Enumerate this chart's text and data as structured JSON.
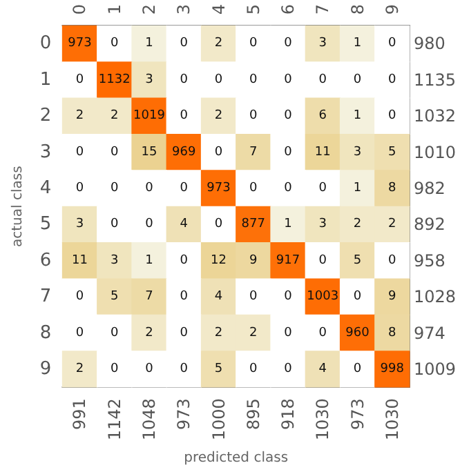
{
  "chart_data": {
    "type": "heatmap",
    "xlabel": "predicted class",
    "ylabel": "actual class",
    "categories": [
      "0",
      "1",
      "2",
      "3",
      "4",
      "5",
      "6",
      "7",
      "8",
      "9"
    ],
    "annotations": [
      "991",
      "1142",
      "1048",
      "973",
      "1000",
      "895",
      "918",
      "1030",
      "973",
      "1030"
    ],
    "y_categories": [
      "0",
      "1",
      "2",
      "3",
      "4",
      "5",
      "6",
      "7",
      "8",
      "9"
    ],
    "y2_categories": [
      "980",
      "1135",
      "1032",
      "1010",
      "982",
      "892",
      "958",
      "1028",
      "974",
      "1009"
    ],
    "cells": [
      [
        973,
        0,
        1,
        0,
        2,
        0,
        0,
        3,
        1,
        0
      ],
      [
        0,
        1132,
        3,
        0,
        0,
        0,
        0,
        0,
        0,
        0
      ],
      [
        2,
        2,
        1019,
        0,
        2,
        0,
        0,
        6,
        1,
        0
      ],
      [
        0,
        0,
        15,
        969,
        0,
        7,
        0,
        11,
        3,
        5
      ],
      [
        0,
        0,
        0,
        0,
        973,
        0,
        0,
        0,
        1,
        8
      ],
      [
        3,
        0,
        0,
        4,
        0,
        877,
        1,
        3,
        2,
        2
      ],
      [
        11,
        3,
        1,
        0,
        12,
        9,
        917,
        0,
        5,
        0
      ],
      [
        0,
        5,
        7,
        0,
        4,
        0,
        0,
        1003,
        0,
        9
      ],
      [
        0,
        0,
        2,
        0,
        2,
        2,
        0,
        0,
        960,
        8
      ],
      [
        2,
        0,
        0,
        0,
        5,
        0,
        0,
        4,
        0,
        998
      ]
    ],
    "data_labels": true
  }
}
